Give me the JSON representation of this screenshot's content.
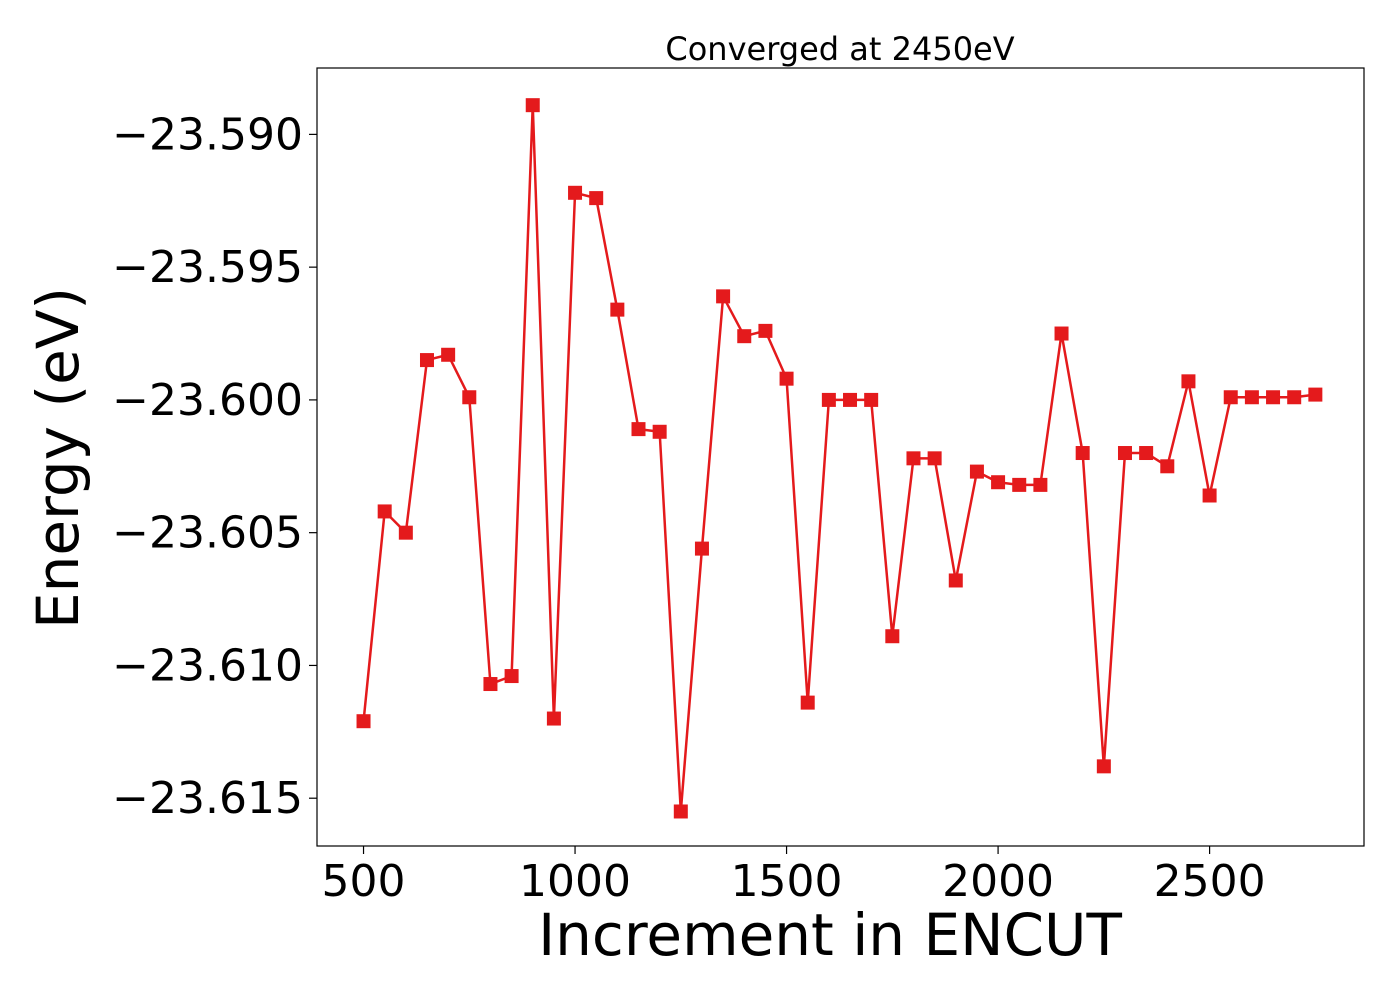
{
  "chart_data": {
    "type": "line",
    "title": "Converged at 2450eV",
    "xlabel": "Increment in ENCUT",
    "ylabel": "Energy (eV)",
    "xlim": [
      390,
      2865
    ],
    "ylim": [
      -23.6168,
      -23.5875
    ],
    "xticks": [
      500,
      1000,
      1500,
      2000,
      2500
    ],
    "xtick_labels": [
      "500",
      "1000",
      "1500",
      "2000",
      "2500"
    ],
    "yticks": [
      -23.59,
      -23.595,
      -23.6,
      -23.605,
      -23.61,
      -23.615
    ],
    "ytick_labels": [
      "−23.590",
      "−23.595",
      "−23.600",
      "−23.605",
      "−23.610",
      "−23.615"
    ],
    "grid": false,
    "legend": "none",
    "series": [
      {
        "color": "#e41a1c",
        "marker": "square",
        "x": [
          500,
          550,
          600,
          650,
          700,
          750,
          800,
          850,
          900,
          950,
          1000,
          1050,
          1100,
          1150,
          1200,
          1250,
          1300,
          1350,
          1400,
          1450,
          1500,
          1550,
          1600,
          1650,
          1700,
          1750,
          1800,
          1850,
          1900,
          1950,
          2000,
          2050,
          2100,
          2150,
          2200,
          2250,
          2300,
          2350,
          2400,
          2450,
          2500,
          2550,
          2600,
          2650,
          2700,
          2750
        ],
        "y": [
          -23.6121,
          -23.6042,
          -23.605,
          -23.5985,
          -23.5983,
          -23.5999,
          -23.6107,
          -23.6104,
          -23.5889,
          -23.612,
          -23.5922,
          -23.5924,
          -23.5966,
          -23.6011,
          -23.6012,
          -23.6155,
          -23.6056,
          -23.5961,
          -23.5976,
          -23.5974,
          -23.5992,
          -23.6114,
          -23.6,
          -23.6,
          -23.6,
          -23.6089,
          -23.6022,
          -23.6022,
          -23.6068,
          -23.6027,
          -23.6031,
          -23.6032,
          -23.6032,
          -23.5975,
          -23.602,
          -23.6138,
          -23.602,
          -23.602,
          -23.6025,
          -23.5993,
          -23.6036,
          -23.5999,
          -23.5999,
          -23.5999,
          -23.5999,
          -23.5998
        ]
      }
    ]
  }
}
